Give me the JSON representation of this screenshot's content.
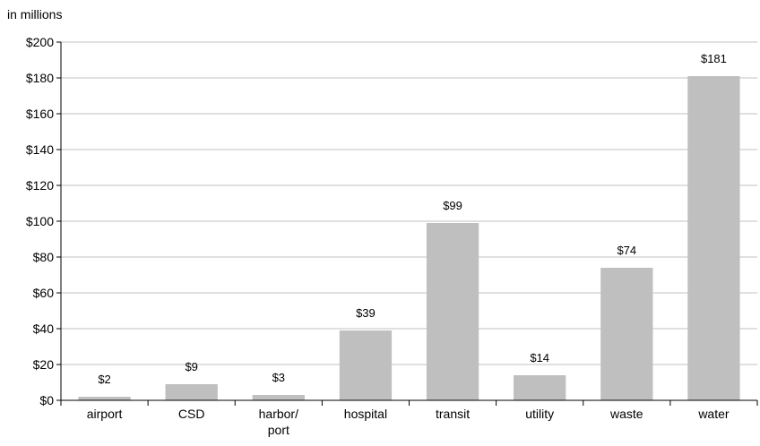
{
  "chart_data": {
    "type": "bar",
    "unit_label": "in millions",
    "categories": [
      "airport",
      "CSD",
      "harbor/\nport",
      "hospital",
      "transit",
      "utility",
      "waste",
      "water"
    ],
    "values": [
      2,
      9,
      3,
      39,
      99,
      14,
      74,
      181
    ],
    "data_labels": [
      "$2",
      "$9",
      "$3",
      "$39",
      "$99",
      "$14",
      "$74",
      "$181"
    ],
    "ylim": [
      0,
      200
    ],
    "yticks": [
      0,
      20,
      40,
      60,
      80,
      100,
      120,
      140,
      160,
      180,
      200
    ],
    "ytick_labels": [
      "$0",
      "$20",
      "$40",
      "$60",
      "$80",
      "$100",
      "$120",
      "$140",
      "$160",
      "$180",
      "$200"
    ],
    "grid": true,
    "bar_color": "#bfbfbf",
    "grid_color": "#c0c0c0"
  }
}
